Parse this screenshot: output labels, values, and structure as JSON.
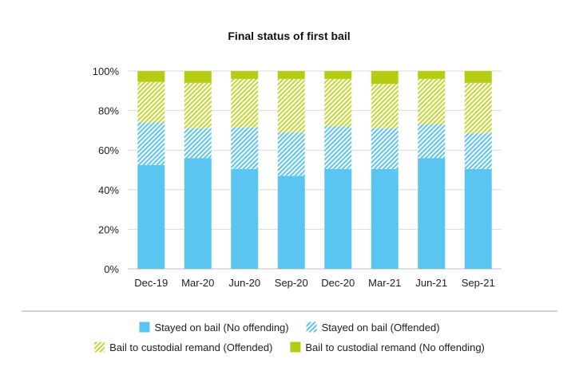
{
  "chart_data": {
    "type": "bar",
    "stacked": true,
    "title": "Final status of first bail",
    "xlabel": "",
    "ylabel": "",
    "ylim": [
      0,
      100
    ],
    "yticks": [
      "0%",
      "20%",
      "40%",
      "60%",
      "80%",
      "100%"
    ],
    "categories": [
      "Dec-19",
      "Mar-20",
      "Jun-20",
      "Sep-20",
      "Dec-20",
      "Mar-21",
      "Jun-21",
      "Sep-21"
    ],
    "series": [
      {
        "name": "Stayed on bail (No offending)",
        "color": "#5bc5f2",
        "pattern": "solid",
        "values": [
          52.5,
          56,
          50.5,
          47,
          50.5,
          50.5,
          56,
          50.5
        ]
      },
      {
        "name": "Stayed on bail (Offended)",
        "color": "#5bc5f2",
        "pattern": "hatched",
        "values": [
          21.5,
          15,
          21,
          22,
          21.5,
          20.5,
          17,
          18
        ]
      },
      {
        "name": "Bail to custodial remand (Offended)",
        "color": "#c3d733",
        "pattern": "hatched",
        "values": [
          20.5,
          23,
          24.5,
          27,
          24,
          22.5,
          23,
          25.5
        ]
      },
      {
        "name": "Bail to custodial remand (No offending)",
        "color": "#b5cc12",
        "pattern": "solid",
        "values": [
          5.5,
          6,
          4,
          4,
          4,
          6.5,
          4,
          6
        ]
      }
    ],
    "grid": true,
    "legend_position": "bottom"
  }
}
